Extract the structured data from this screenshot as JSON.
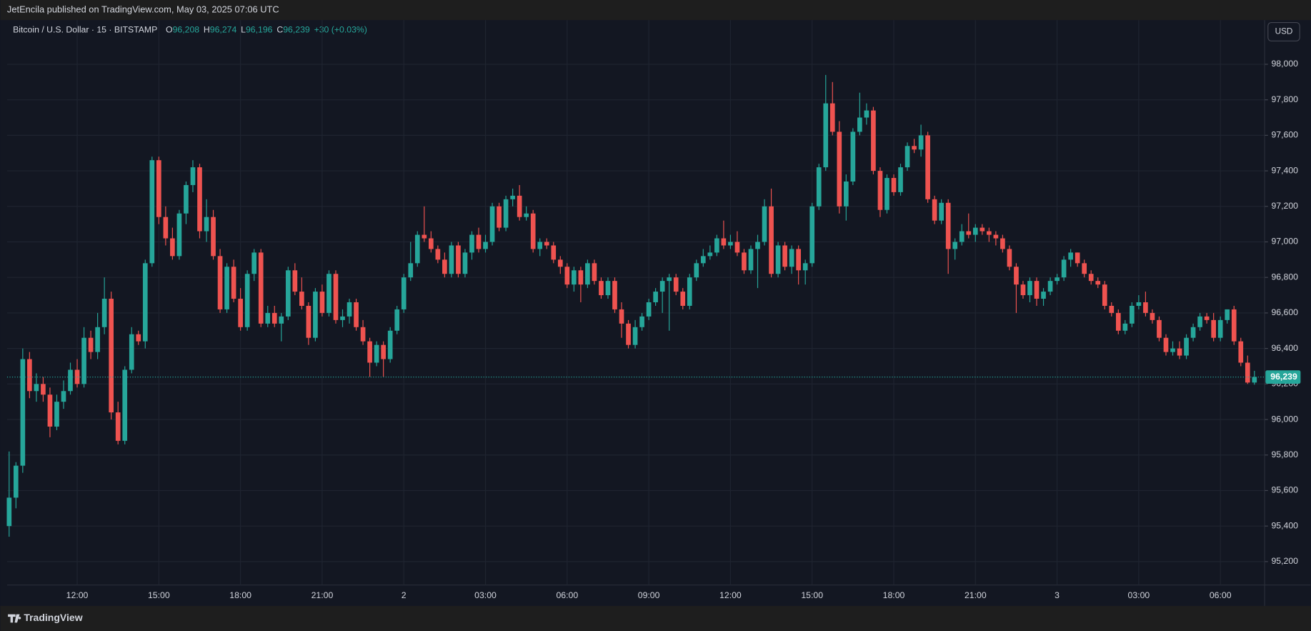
{
  "header": {
    "publisher": "JetEncila published on TradingView.com, May 03, 2025 07:06 UTC"
  },
  "chart_data": {
    "type": "candlestick",
    "title": "Bitcoin / U.S. Dollar · 15 · BITSTAMP",
    "legend": {
      "o": "O",
      "o_value": "96,208",
      "h": "H",
      "h_value": "96,274",
      "l": "L",
      "l_value": "96,196",
      "c": "C",
      "c_value": "96,239",
      "change": "+30 (+0.03%)"
    },
    "currency": "USD",
    "up_color": "#26a69a",
    "down_color": "#ef5350",
    "grid": true,
    "last_price": {
      "value": 96239,
      "label": "96,239"
    },
    "xlim": [
      -0.3,
      184.5
    ],
    "xticks": [
      {
        "value": 10,
        "label": "12:00"
      },
      {
        "value": 22,
        "label": "15:00"
      },
      {
        "value": 34,
        "label": "18:00"
      },
      {
        "value": 46,
        "label": "21:00"
      },
      {
        "value": 58,
        "label": "2"
      },
      {
        "value": 70,
        "label": "03:00"
      },
      {
        "value": 82,
        "label": "06:00"
      },
      {
        "value": 94,
        "label": "09:00"
      },
      {
        "value": 106,
        "label": "12:00"
      },
      {
        "value": 118,
        "label": "15:00"
      },
      {
        "value": 130,
        "label": "18:00"
      },
      {
        "value": 142,
        "label": "21:00"
      },
      {
        "value": 154,
        "label": "3"
      },
      {
        "value": 166,
        "label": "03:00"
      },
      {
        "value": 178,
        "label": "06:00"
      }
    ],
    "ylim": [
      95068,
      98249
    ],
    "yticks": [
      {
        "value": 95200,
        "label": "95,200"
      },
      {
        "value": 95400,
        "label": "95,400"
      },
      {
        "value": 95600,
        "label": "95,600"
      },
      {
        "value": 95800,
        "label": "95,800"
      },
      {
        "value": 96000,
        "label": "96,000"
      },
      {
        "value": 96200,
        "label": "96,200"
      },
      {
        "value": 96400,
        "label": "96,400"
      },
      {
        "value": 96600,
        "label": "96,600"
      },
      {
        "value": 96800,
        "label": "96,800"
      },
      {
        "value": 97000,
        "label": "97,000"
      },
      {
        "value": 97200,
        "label": "97,200"
      },
      {
        "value": 97400,
        "label": "97,400"
      },
      {
        "value": 97600,
        "label": "97,600"
      },
      {
        "value": 97800,
        "label": "97,800"
      },
      {
        "value": 98000,
        "label": "98,000"
      }
    ],
    "ohlc": [
      [
        95400,
        95820,
        95340,
        95560
      ],
      [
        95560,
        95760,
        95500,
        95740
      ],
      [
        95740,
        96400,
        95700,
        96340
      ],
      [
        96340,
        96380,
        96120,
        96160
      ],
      [
        96160,
        96260,
        96100,
        96200
      ],
      [
        96200,
        96240,
        96100,
        96140
      ],
      [
        96140,
        96180,
        95900,
        95960
      ],
      [
        95960,
        96140,
        95940,
        96100
      ],
      [
        96100,
        96220,
        96060,
        96160
      ],
      [
        96160,
        96320,
        96140,
        96280
      ],
      [
        96280,
        96340,
        96180,
        96200
      ],
      [
        96200,
        96520,
        96180,
        96460
      ],
      [
        96460,
        96500,
        96340,
        96380
      ],
      [
        96380,
        96600,
        96340,
        96520
      ],
      [
        96520,
        96800,
        96480,
        96680
      ],
      [
        96680,
        96720,
        96000,
        96040
      ],
      [
        96040,
        96100,
        95860,
        95880
      ],
      [
        95880,
        96300,
        95860,
        96280
      ],
      [
        96280,
        96520,
        96260,
        96480
      ],
      [
        96480,
        96500,
        96420,
        96440
      ],
      [
        96440,
        96900,
        96400,
        96880
      ],
      [
        96880,
        97480,
        96860,
        97460
      ],
      [
        97460,
        97480,
        97100,
        97140
      ],
      [
        97140,
        97200,
        96980,
        97020
      ],
      [
        97020,
        97080,
        96900,
        96920
      ],
      [
        96920,
        97180,
        96900,
        97160
      ],
      [
        97160,
        97340,
        97100,
        97320
      ],
      [
        97320,
        97460,
        97280,
        97420
      ],
      [
        97420,
        97440,
        97020,
        97060
      ],
      [
        97060,
        97240,
        97000,
        97140
      ],
      [
        97140,
        97180,
        96900,
        96920
      ],
      [
        96920,
        96960,
        96600,
        96620
      ],
      [
        96620,
        96880,
        96600,
        96860
      ],
      [
        96860,
        96900,
        96660,
        96680
      ],
      [
        96680,
        96740,
        96500,
        96520
      ],
      [
        96520,
        96840,
        96500,
        96820
      ],
      [
        96820,
        96960,
        96780,
        96940
      ],
      [
        96940,
        96960,
        96520,
        96540
      ],
      [
        96540,
        96640,
        96520,
        96600
      ],
      [
        96600,
        96640,
        96520,
        96540
      ],
      [
        96540,
        96600,
        96440,
        96580
      ],
      [
        96580,
        96860,
        96560,
        96840
      ],
      [
        96840,
        96880,
        96700,
        96720
      ],
      [
        96720,
        96800,
        96620,
        96640
      ],
      [
        96640,
        96660,
        96420,
        96460
      ],
      [
        96460,
        96740,
        96440,
        96720
      ],
      [
        96720,
        96760,
        96580,
        96600
      ],
      [
        96600,
        96840,
        96580,
        96820
      ],
      [
        96820,
        96840,
        96540,
        96560
      ],
      [
        96560,
        96620,
        96520,
        96580
      ],
      [
        96580,
        96680,
        96540,
        96660
      ],
      [
        96660,
        96680,
        96500,
        96520
      ],
      [
        96520,
        96560,
        96420,
        96440
      ],
      [
        96440,
        96460,
        96240,
        96320
      ],
      [
        96320,
        96440,
        96300,
        96420
      ],
      [
        96420,
        96440,
        96240,
        96340
      ],
      [
        96340,
        96520,
        96320,
        96500
      ],
      [
        96500,
        96640,
        96480,
        96620
      ],
      [
        96620,
        96820,
        96600,
        96800
      ],
      [
        96800,
        97000,
        96780,
        96880
      ],
      [
        96880,
        97060,
        96860,
        97040
      ],
      [
        97040,
        97200,
        97000,
        97020
      ],
      [
        97020,
        97060,
        96940,
        96960
      ],
      [
        96960,
        96980,
        96880,
        96900
      ],
      [
        96900,
        96940,
        96800,
        96820
      ],
      [
        96820,
        97000,
        96800,
        96980
      ],
      [
        96980,
        97000,
        96800,
        96820
      ],
      [
        96820,
        96960,
        96800,
        96940
      ],
      [
        96940,
        97060,
        96900,
        97040
      ],
      [
        97040,
        97080,
        96940,
        96960
      ],
      [
        96960,
        97040,
        96940,
        97000
      ],
      [
        97000,
        97220,
        96980,
        97200
      ],
      [
        97200,
        97220,
        97060,
        97080
      ],
      [
        97080,
        97260,
        97060,
        97240
      ],
      [
        97240,
        97300,
        97200,
        97260
      ],
      [
        97260,
        97320,
        97120,
        97140
      ],
      [
        97140,
        97200,
        97120,
        97160
      ],
      [
        97160,
        97180,
        96940,
        96960
      ],
      [
        96960,
        97020,
        96920,
        97000
      ],
      [
        97000,
        97020,
        96960,
        96980
      ],
      [
        96980,
        97000,
        96880,
        96900
      ],
      [
        96900,
        96920,
        96820,
        96860
      ],
      [
        96860,
        96880,
        96740,
        96760
      ],
      [
        96760,
        96860,
        96720,
        96840
      ],
      [
        96840,
        96860,
        96660,
        96760
      ],
      [
        96760,
        96900,
        96740,
        96880
      ],
      [
        96880,
        96900,
        96760,
        96780
      ],
      [
        96780,
        96800,
        96680,
        96700
      ],
      [
        96700,
        96800,
        96680,
        96780
      ],
      [
        96780,
        96800,
        96600,
        96620
      ],
      [
        96620,
        96660,
        96460,
        96540
      ],
      [
        96540,
        96560,
        96400,
        96420
      ],
      [
        96420,
        96560,
        96400,
        96520
      ],
      [
        96520,
        96600,
        96500,
        96580
      ],
      [
        96580,
        96680,
        96560,
        96660
      ],
      [
        96660,
        96740,
        96640,
        96720
      ],
      [
        96720,
        96800,
        96600,
        96780
      ],
      [
        96780,
        96820,
        96500,
        96800
      ],
      [
        96800,
        96820,
        96700,
        96720
      ],
      [
        96720,
        96740,
        96620,
        96640
      ],
      [
        96640,
        96820,
        96620,
        96800
      ],
      [
        96800,
        96900,
        96780,
        96880
      ],
      [
        96880,
        96960,
        96860,
        96920
      ],
      [
        96920,
        96980,
        96900,
        96940
      ],
      [
        96940,
        97040,
        96920,
        97020
      ],
      [
        97020,
        97120,
        96960,
        96980
      ],
      [
        96980,
        97040,
        96960,
        97000
      ],
      [
        97000,
        97060,
        96920,
        96940
      ],
      [
        96940,
        96960,
        96820,
        96840
      ],
      [
        96840,
        96980,
        96820,
        96960
      ],
      [
        96960,
        97040,
        96740,
        97000
      ],
      [
        97000,
        97240,
        96980,
        97200
      ],
      [
        97200,
        97300,
        96800,
        96820
      ],
      [
        96820,
        97000,
        96800,
        96980
      ],
      [
        96980,
        97000,
        96840,
        96860
      ],
      [
        96860,
        96980,
        96820,
        96960
      ],
      [
        96960,
        96980,
        96760,
        96840
      ],
      [
        96840,
        96900,
        96760,
        96880
      ],
      [
        96880,
        97220,
        96860,
        97200
      ],
      [
        97200,
        97440,
        97180,
        97420
      ],
      [
        97420,
        97940,
        97400,
        97780
      ],
      [
        97780,
        97900,
        97600,
        97620
      ],
      [
        97620,
        97680,
        97160,
        97200
      ],
      [
        97200,
        97380,
        97120,
        97340
      ],
      [
        97340,
        97640,
        97320,
        97620
      ],
      [
        97620,
        97840,
        97600,
        97700
      ],
      [
        97700,
        97780,
        97660,
        97740
      ],
      [
        97740,
        97760,
        97380,
        97400
      ],
      [
        97400,
        97420,
        97140,
        97180
      ],
      [
        97180,
        97380,
        97160,
        97360
      ],
      [
        97360,
        97380,
        97260,
        97280
      ],
      [
        97280,
        97440,
        97260,
        97420
      ],
      [
        97420,
        97560,
        97400,
        97540
      ],
      [
        97540,
        97580,
        97500,
        97520
      ],
      [
        97520,
        97660,
        97480,
        97600
      ],
      [
        97600,
        97620,
        97220,
        97240
      ],
      [
        97240,
        97260,
        97100,
        97120
      ],
      [
        97120,
        97240,
        97100,
        97220
      ],
      [
        97220,
        97240,
        96820,
        96960
      ],
      [
        96960,
        97020,
        96900,
        97000
      ],
      [
        97000,
        97100,
        96980,
        97060
      ],
      [
        97060,
        97160,
        97020,
        97040
      ],
      [
        97040,
        97100,
        97000,
        97080
      ],
      [
        97080,
        97100,
        97040,
        97060
      ],
      [
        97060,
        97080,
        97000,
        97040
      ],
      [
        97040,
        97060,
        96980,
        97020
      ],
      [
        97020,
        97040,
        96940,
        96960
      ],
      [
        96960,
        96980,
        96840,
        96860
      ],
      [
        96860,
        96880,
        96600,
        96760
      ],
      [
        96760,
        96780,
        96680,
        96700
      ],
      [
        96700,
        96800,
        96660,
        96780
      ],
      [
        96780,
        96800,
        96640,
        96680
      ],
      [
        96680,
        96740,
        96640,
        96720
      ],
      [
        96720,
        96800,
        96700,
        96780
      ],
      [
        96780,
        96820,
        96760,
        96800
      ],
      [
        96800,
        96920,
        96780,
        96900
      ],
      [
        96900,
        96960,
        96860,
        96940
      ],
      [
        96940,
        96940,
        96860,
        96880
      ],
      [
        96880,
        96900,
        96800,
        96820
      ],
      [
        96820,
        96840,
        96760,
        96780
      ],
      [
        96780,
        96800,
        96740,
        96760
      ],
      [
        96760,
        96780,
        96620,
        96640
      ],
      [
        96640,
        96660,
        96580,
        96600
      ],
      [
        96600,
        96620,
        96480,
        96500
      ],
      [
        96500,
        96560,
        96480,
        96540
      ],
      [
        96540,
        96660,
        96520,
        96640
      ],
      [
        96640,
        96700,
        96620,
        96660
      ],
      [
        96660,
        96720,
        96580,
        96600
      ],
      [
        96600,
        96620,
        96540,
        96560
      ],
      [
        96560,
        96580,
        96440,
        96460
      ],
      [
        96460,
        96480,
        96360,
        96380
      ],
      [
        96380,
        96440,
        96360,
        96400
      ],
      [
        96400,
        96440,
        96340,
        96360
      ],
      [
        96360,
        96480,
        96340,
        96460
      ],
      [
        96460,
        96540,
        96440,
        96520
      ],
      [
        96520,
        96600,
        96500,
        96580
      ],
      [
        96580,
        96600,
        96540,
        96560
      ],
      [
        96560,
        96600,
        96440,
        96460
      ],
      [
        96460,
        96580,
        96440,
        96560
      ],
      [
        96560,
        96620,
        96540,
        96620
      ],
      [
        96620,
        96640,
        96420,
        96440
      ],
      [
        96440,
        96460,
        96300,
        96320
      ],
      [
        96320,
        96360,
        96200,
        96208
      ],
      [
        96208,
        96274,
        96196,
        96239
      ]
    ]
  },
  "footer": {
    "brand": "TradingView"
  }
}
